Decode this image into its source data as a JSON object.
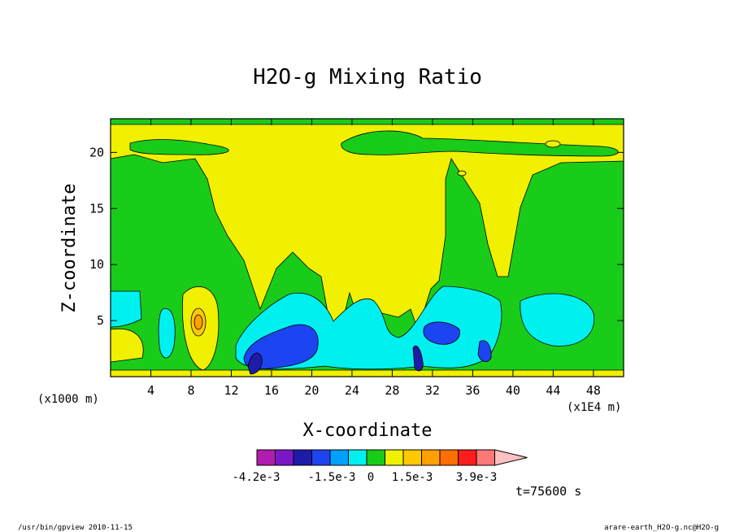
{
  "chart_data": {
    "type": "heatmap",
    "title": "H2O-g Mixing Ratio",
    "xlabel": "X-coordinate",
    "ylabel": "Z-coordinate",
    "x_unit_left": "(x1000 m)",
    "x_unit_right": "(x1E4 m)",
    "xlim": [
      0,
      51
    ],
    "ylim": [
      0,
      23
    ],
    "x_ticks": [
      "4",
      "8",
      "12",
      "16",
      "20",
      "24",
      "28",
      "32",
      "36",
      "40",
      "44",
      "48"
    ],
    "y_ticks": [
      "5",
      "10",
      "15",
      "20"
    ],
    "colorbar": {
      "labels": [
        "-4.2e-3",
        "-1.5e-3",
        "0",
        "1.5e-3",
        "3.9e-3"
      ],
      "colors": [
        "#b01cb0",
        "#7a18c8",
        "#1c1ca8",
        "#1c44f0",
        "#00a0ff",
        "#00f0f0",
        "#19cc19",
        "#f0f000",
        "#ffc800",
        "#ffa000",
        "#ff6e00",
        "#ff1c1c",
        "#ff7878",
        "#ffc0c0"
      ]
    },
    "time_label": "t=75600 s"
  },
  "footer": {
    "left": "/usr/bin/gpview   2010-11-15",
    "right": "arare-earth_H2O-g.nc@H2O-g"
  }
}
